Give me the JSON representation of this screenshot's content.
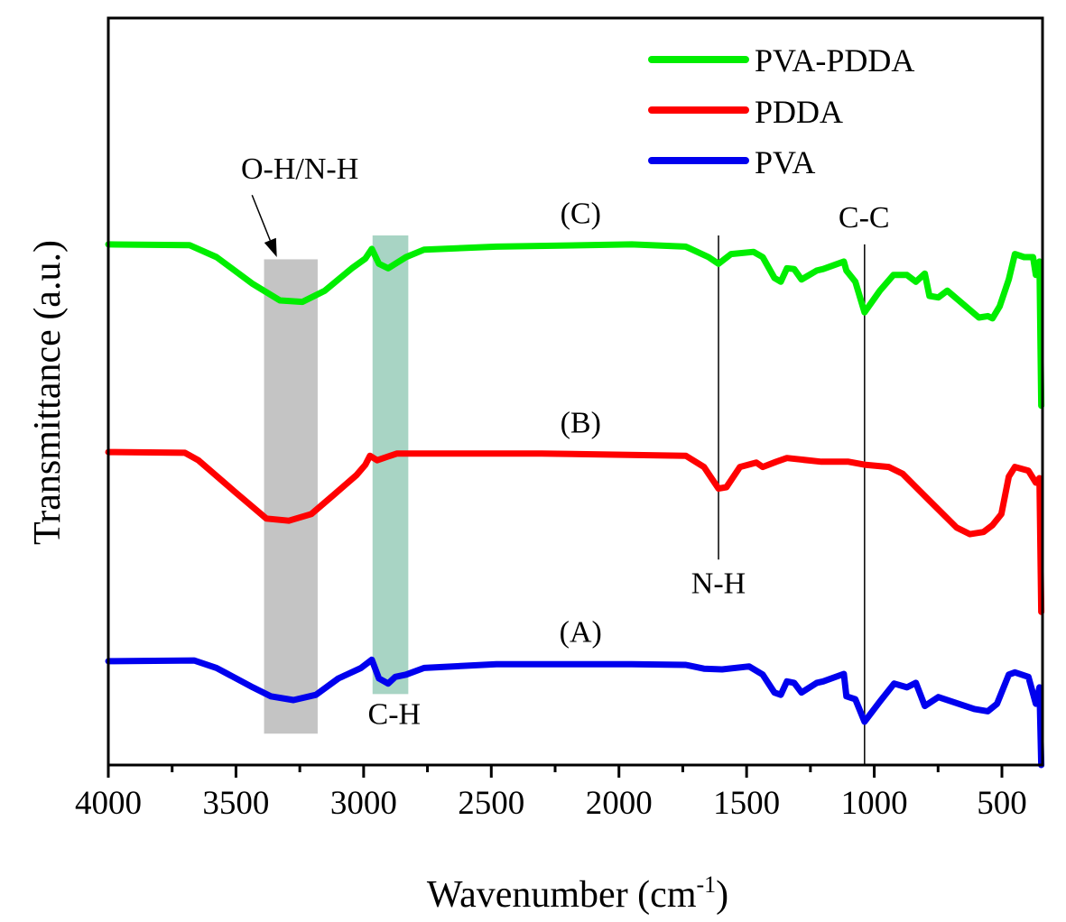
{
  "chart_data": {
    "type": "line",
    "title": "",
    "xlabel": "Wavenumber (cm",
    "xlabel_superscript": "-1",
    "xlabel_suffix": ")",
    "ylabel": "Transmittance (a.u.)",
    "xlim": [
      4000,
      340
    ],
    "x_reversed": true,
    "ylim": [
      0,
      100
    ],
    "y_ticks_shown": false,
    "grid": false,
    "x_ticks": [
      4000,
      3500,
      3000,
      2500,
      2000,
      1500,
      1000,
      500
    ],
    "x_minor_ticks": [
      3750,
      3250,
      2750,
      2250,
      1750,
      1250,
      750
    ],
    "legend": {
      "placement": "top-right",
      "entries": [
        "PVA-PDDA",
        "PDDA",
        "PVA"
      ]
    },
    "series": [
      {
        "name": "PVA-PDDA",
        "label": "(C)",
        "color": "#00ee00",
        "points": [
          [
            4000,
            69.7
          ],
          [
            3682,
            69.6
          ],
          [
            3576,
            68.0
          ],
          [
            3434,
            64.4
          ],
          [
            3328,
            62.2
          ],
          [
            3240,
            62.0
          ],
          [
            3152,
            63.5
          ],
          [
            3046,
            66.5
          ],
          [
            2993,
            67.8
          ],
          [
            2968,
            69.1
          ],
          [
            2940,
            67.1
          ],
          [
            2904,
            66.5
          ],
          [
            2876,
            67.1
          ],
          [
            2834,
            68.0
          ],
          [
            2763,
            69.0
          ],
          [
            2480,
            69.4
          ],
          [
            1950,
            69.7
          ],
          [
            1738,
            69.4
          ],
          [
            1649,
            68.0
          ],
          [
            1610,
            67.1
          ],
          [
            1561,
            68.4
          ],
          [
            1473,
            68.7
          ],
          [
            1437,
            68.0
          ],
          [
            1391,
            65.2
          ],
          [
            1366,
            64.7
          ],
          [
            1342,
            66.5
          ],
          [
            1314,
            66.4
          ],
          [
            1285,
            65.0
          ],
          [
            1225,
            66.2
          ],
          [
            1200,
            66.4
          ],
          [
            1119,
            67.4
          ],
          [
            1109,
            66.2
          ],
          [
            1074,
            64.7
          ],
          [
            1038,
            60.6
          ],
          [
            978,
            63.5
          ],
          [
            925,
            65.6
          ],
          [
            872,
            65.6
          ],
          [
            837,
            64.7
          ],
          [
            802,
            65.8
          ],
          [
            784,
            62.8
          ],
          [
            749,
            62.6
          ],
          [
            714,
            63.5
          ],
          [
            590,
            59.9
          ],
          [
            555,
            60.1
          ],
          [
            537,
            59.8
          ],
          [
            509,
            61.4
          ],
          [
            473,
            65.0
          ],
          [
            449,
            68.4
          ],
          [
            413,
            68.0
          ],
          [
            378,
            68.0
          ],
          [
            367,
            65.6
          ],
          [
            353,
            67.4
          ],
          [
            346,
            48.1
          ]
        ]
      },
      {
        "name": "PDDA",
        "label": "(B)",
        "color": "#ff0000",
        "points": [
          [
            4000,
            41.9
          ],
          [
            3700,
            41.8
          ],
          [
            3647,
            40.8
          ],
          [
            3505,
            36.6
          ],
          [
            3381,
            33.0
          ],
          [
            3293,
            32.7
          ],
          [
            3205,
            33.6
          ],
          [
            3116,
            36.2
          ],
          [
            3028,
            38.8
          ],
          [
            2993,
            40.2
          ],
          [
            2975,
            41.4
          ],
          [
            2947,
            40.8
          ],
          [
            2904,
            41.3
          ],
          [
            2869,
            41.7
          ],
          [
            2303,
            41.7
          ],
          [
            1738,
            41.4
          ],
          [
            1667,
            39.9
          ],
          [
            1610,
            37.0
          ],
          [
            1579,
            37.2
          ],
          [
            1526,
            39.9
          ],
          [
            1462,
            40.5
          ],
          [
            1437,
            39.9
          ],
          [
            1384,
            40.6
          ],
          [
            1342,
            41.1
          ],
          [
            1207,
            40.6
          ],
          [
            1101,
            40.6
          ],
          [
            1038,
            40.2
          ],
          [
            943,
            39.9
          ],
          [
            889,
            39.0
          ],
          [
            784,
            35.4
          ],
          [
            678,
            31.8
          ],
          [
            625,
            30.9
          ],
          [
            572,
            31.2
          ],
          [
            537,
            32.1
          ],
          [
            502,
            33.6
          ],
          [
            473,
            38.6
          ],
          [
            449,
            39.9
          ],
          [
            396,
            39.4
          ],
          [
            367,
            37.8
          ],
          [
            353,
            38.4
          ],
          [
            346,
            20.5
          ]
        ]
      },
      {
        "name": "PVA",
        "label": "(A)",
        "color": "#0000ee",
        "points": [
          [
            4000,
            13.9
          ],
          [
            3664,
            14.0
          ],
          [
            3576,
            13.0
          ],
          [
            3434,
            10.4
          ],
          [
            3364,
            9.2
          ],
          [
            3275,
            8.7
          ],
          [
            3187,
            9.4
          ],
          [
            3099,
            11.6
          ],
          [
            3010,
            13.0
          ],
          [
            2968,
            14.1
          ],
          [
            2940,
            11.6
          ],
          [
            2904,
            10.9
          ],
          [
            2876,
            11.8
          ],
          [
            2834,
            12.1
          ],
          [
            2763,
            13.0
          ],
          [
            2480,
            13.5
          ],
          [
            1950,
            13.5
          ],
          [
            1738,
            13.4
          ],
          [
            1667,
            12.9
          ],
          [
            1596,
            12.8
          ],
          [
            1490,
            13.2
          ],
          [
            1437,
            12.1
          ],
          [
            1391,
            9.7
          ],
          [
            1366,
            9.4
          ],
          [
            1342,
            11.2
          ],
          [
            1314,
            11.0
          ],
          [
            1285,
            9.7
          ],
          [
            1225,
            11.0
          ],
          [
            1200,
            11.2
          ],
          [
            1119,
            12.2
          ],
          [
            1109,
            9.2
          ],
          [
            1074,
            8.8
          ],
          [
            1038,
            5.8
          ],
          [
            978,
            8.5
          ],
          [
            922,
            10.9
          ],
          [
            872,
            10.4
          ],
          [
            837,
            11.0
          ],
          [
            802,
            7.9
          ],
          [
            749,
            9.1
          ],
          [
            608,
            7.5
          ],
          [
            555,
            7.2
          ],
          [
            519,
            8.2
          ],
          [
            473,
            12.1
          ],
          [
            449,
            12.4
          ],
          [
            396,
            11.8
          ],
          [
            367,
            8.2
          ],
          [
            353,
            10.4
          ],
          [
            346,
            0
          ]
        ]
      }
    ],
    "series_labels": [
      {
        "text": "(C)",
        "x": 2150,
        "y": 72.5
      },
      {
        "text": "(B)",
        "x": 2150,
        "y": 44.5
      },
      {
        "text": "(A)",
        "x": 2150,
        "y": 16.5
      }
    ],
    "bands": [
      {
        "name": "O-H/N-H",
        "x0": 3390,
        "x1": 3180,
        "y0": 4.2,
        "y1": 67.7,
        "color": "#c4c4c4"
      },
      {
        "name": "C-H",
        "x0": 2965,
        "x1": 2825,
        "y0": 9.5,
        "y1": 70.9,
        "color": "#a8d4c4"
      }
    ],
    "annotations": [
      {
        "text": "O-H/N-H",
        "x": 3250,
        "y": 78.5,
        "arrow_from": [
          3437,
          76.3
        ],
        "arrow_to": [
          3340,
          68.0
        ]
      },
      {
        "text": "C-H",
        "x": 2880,
        "y": 5.5
      },
      {
        "text": "N-H",
        "x": 1610,
        "y": 23.0,
        "vline_x": 1610,
        "vline_y": [
          27.5,
          70.9
        ]
      },
      {
        "text": "C-C",
        "x": 1040,
        "y": 72.0,
        "vline_x": 1038,
        "vline_y": [
          0,
          69.7
        ]
      }
    ]
  }
}
